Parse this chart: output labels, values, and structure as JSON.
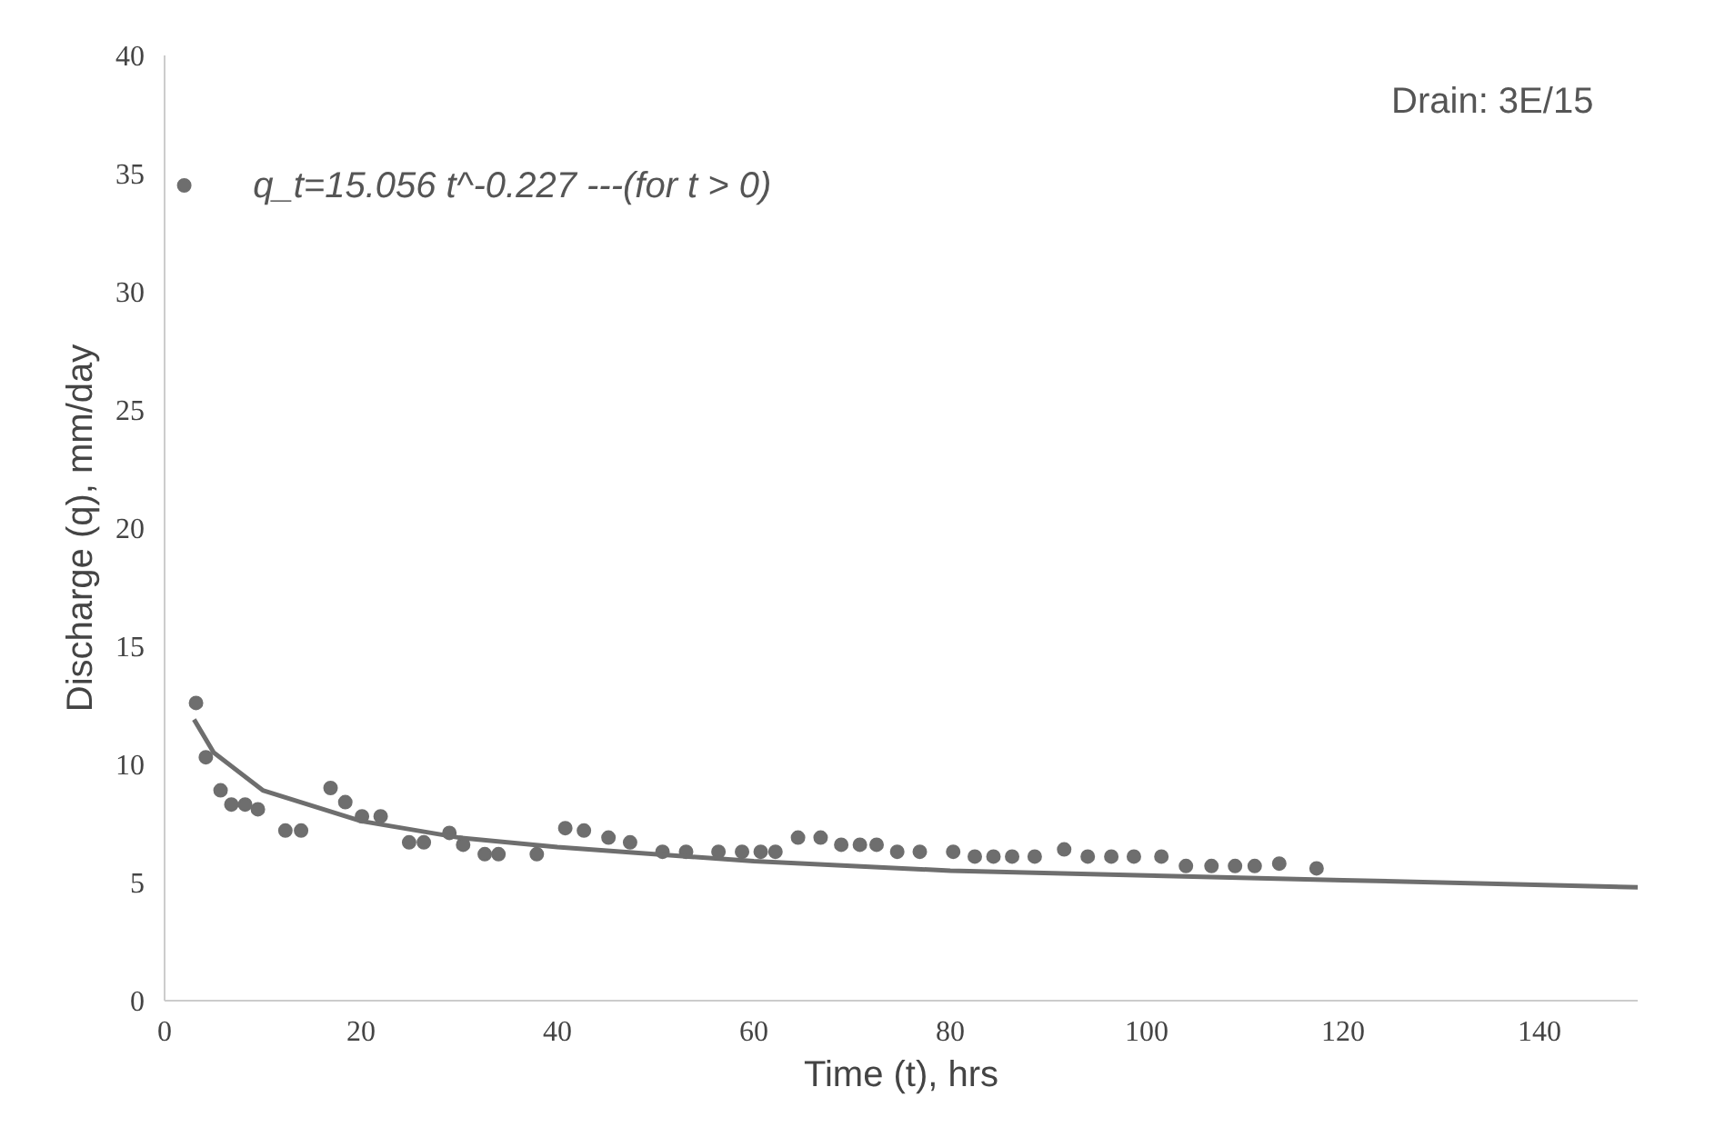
{
  "chart_data": {
    "type": "scatter",
    "xlabel": "Time (t), hrs",
    "ylabel": "Discharge (q), mm/day",
    "annotations": [
      "Drain: 3E/15",
      "q_t=15.056 t^-0.227 ---(for t > 0)"
    ],
    "xlim": [
      0,
      150
    ],
    "ylim": [
      0,
      40
    ],
    "xticks": [
      0,
      20,
      40,
      60,
      80,
      100,
      120,
      140
    ],
    "yticks": [
      0,
      5,
      10,
      15,
      20,
      25,
      30,
      35,
      40
    ],
    "grid": false,
    "series": [
      {
        "marker": "circle",
        "color": "#6e6e6e",
        "x": [
          2,
          3.2,
          4.2,
          5.7,
          6.8,
          8.2,
          9.5,
          12.3,
          13.9,
          16.9,
          18.4,
          20.1,
          22,
          24.9,
          26.4,
          29,
          30.4,
          32.6,
          34,
          37.9,
          40.8,
          42.7,
          45.2,
          47.4,
          50.7,
          53.1,
          56.4,
          58.8,
          60.7,
          62.2,
          64.5,
          66.8,
          68.9,
          70.8,
          72.5,
          74.6,
          76.9,
          80.3,
          82.5,
          84.4,
          86.3,
          88.6,
          91.6,
          94,
          96.4,
          98.7,
          101.5,
          104,
          106.6,
          109,
          111,
          113.5,
          117.3
        ],
        "values": [
          34.5,
          12.6,
          10.3,
          8.9,
          8.3,
          8.3,
          8.1,
          7.2,
          7.2,
          9.0,
          8.4,
          7.8,
          7.8,
          6.7,
          6.7,
          7.1,
          6.6,
          6.2,
          6.2,
          6.2,
          7.3,
          7.2,
          6.9,
          6.7,
          6.3,
          6.3,
          6.3,
          6.3,
          6.3,
          6.3,
          6.9,
          6.9,
          6.6,
          6.6,
          6.6,
          6.3,
          6.3,
          6.3,
          6.1,
          6.1,
          6.1,
          6.1,
          6.4,
          6.1,
          6.1,
          6.1,
          6.1,
          5.7,
          5.7,
          5.7,
          5.7,
          5.8,
          5.6
        ]
      },
      {
        "type": "line",
        "color": "#6e6e6e",
        "x": [
          3,
          5,
          10,
          20,
          30,
          40,
          60,
          80,
          100,
          120,
          150
        ],
        "values": [
          11.9,
          10.5,
          8.9,
          7.6,
          6.9,
          6.5,
          5.9,
          5.5,
          5.3,
          5.1,
          4.8
        ]
      }
    ]
  }
}
